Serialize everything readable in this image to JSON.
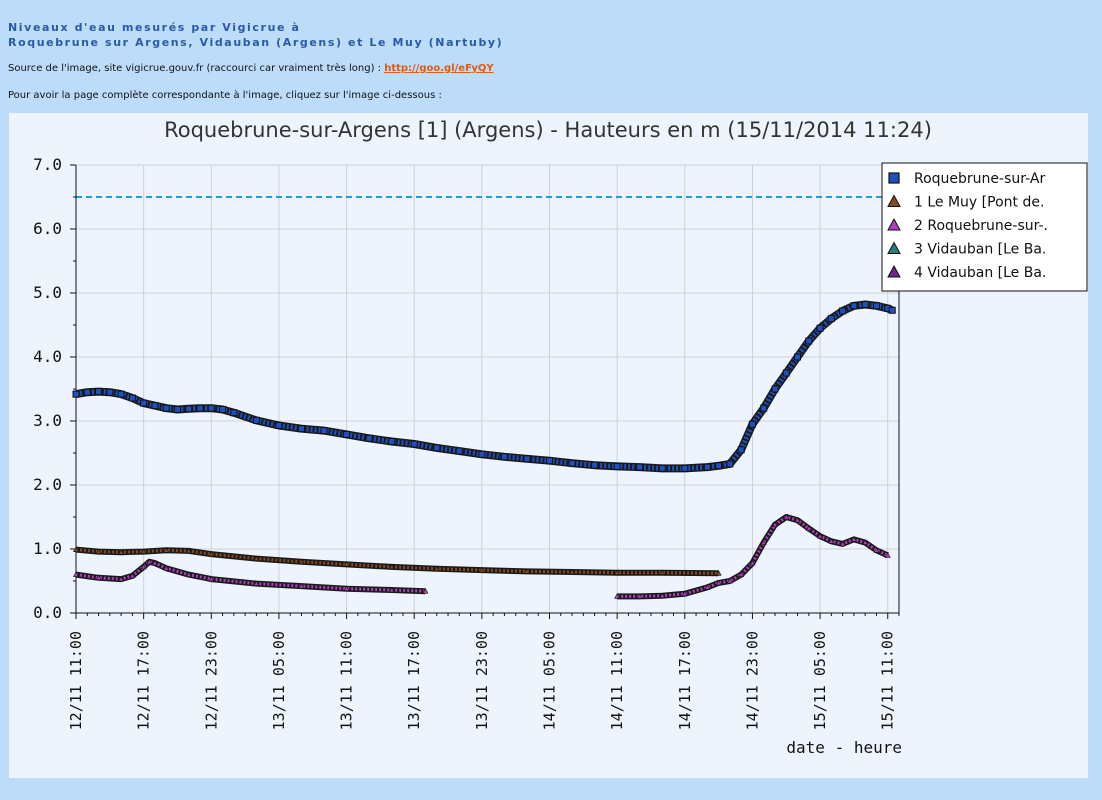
{
  "header": {
    "title_line1": "Niveaux d'eau mesurés par Vigicrue à",
    "title_line2": "Roquebrune sur Argens, Vidauban (Argens) et Le Muy (Nartuby)",
    "source_text": "Source de l'image, site vigicrue.gouv.fr (raccourci car vraiment très long) : ",
    "source_link": "http://goo.gl/eFyQY",
    "instruction": "Pour avoir la page complète correspondante à l'image, cliquez sur l'image ci-dessous :"
  },
  "colors": {
    "page_bg": "#bcdcfa",
    "title": "#2a5aa8",
    "link": "#e05a12",
    "threshold": "#1aa0e0",
    "series_main": "#2050c0",
    "series_muy": "#8a4a20",
    "series_roq": "#b040c0",
    "series_vid3": "#2a7a7a",
    "series_vid4": "#6a2a8a"
  },
  "chart_data": {
    "type": "line",
    "title": "Roquebrune-sur-Argens [1] (Argens) - Hauteurs en m (15/11/2014 11:24)",
    "xlabel": "date - heure",
    "ylabel": "",
    "ylim": [
      0,
      7
    ],
    "x_unit": "hours since first tick",
    "xlim": [
      0,
      73
    ],
    "yticks": [
      "0.0",
      "1.0",
      "2.0",
      "3.0",
      "4.0",
      "5.0",
      "6.0",
      "7.0"
    ],
    "xticks": [
      "12/11 11:00",
      "12/11 17:00",
      "12/11 23:00",
      "13/11 05:00",
      "13/11 11:00",
      "13/11 17:00",
      "13/11 23:00",
      "14/11 05:00",
      "14/11 11:00",
      "14/11 17:00",
      "14/11 23:00",
      "15/11 05:00",
      "15/11 11:00"
    ],
    "threshold": 6.5,
    "grid": true,
    "legend_position": "top-right",
    "legend": [
      "Roquebrune-sur-Ar",
      "1 Le Muy [Pont de.",
      "2 Roquebrune-sur-.",
      "3 Vidauban [Le Ba.",
      "4 Vidauban [Le Ba."
    ],
    "series": [
      {
        "name": "Roquebrune-sur-Ar",
        "marker": "square",
        "x": [
          0,
          1,
          2,
          3,
          4,
          5,
          6,
          7,
          8,
          9,
          10,
          11,
          12,
          13,
          14,
          16,
          18,
          20,
          22,
          24,
          26,
          28,
          30,
          32,
          34,
          36,
          38,
          40,
          42,
          44,
          46,
          48,
          50,
          52,
          54,
          56,
          57,
          58,
          59,
          60,
          61,
          62,
          63,
          64,
          65,
          66,
          67,
          68,
          69,
          70,
          71,
          72,
          72.4
        ],
        "y": [
          3.42,
          3.45,
          3.46,
          3.45,
          3.42,
          3.36,
          3.28,
          3.24,
          3.2,
          3.18,
          3.19,
          3.2,
          3.2,
          3.18,
          3.13,
          3.01,
          2.93,
          2.88,
          2.85,
          2.79,
          2.73,
          2.68,
          2.64,
          2.58,
          2.53,
          2.48,
          2.44,
          2.41,
          2.38,
          2.34,
          2.31,
          2.29,
          2.28,
          2.26,
          2.26,
          2.28,
          2.3,
          2.33,
          2.55,
          2.95,
          3.2,
          3.5,
          3.75,
          4.0,
          4.25,
          4.45,
          4.6,
          4.72,
          4.8,
          4.82,
          4.8,
          4.76,
          4.73
        ]
      },
      {
        "name": "1 Le Muy [Pont de.",
        "marker": "triangle",
        "x": [
          0,
          2,
          4,
          6,
          8,
          10,
          12,
          16,
          20,
          24,
          28,
          32,
          36,
          40,
          44,
          48,
          52,
          57
        ],
        "y": [
          0.99,
          0.96,
          0.95,
          0.96,
          0.98,
          0.97,
          0.92,
          0.85,
          0.8,
          0.76,
          0.72,
          0.69,
          0.67,
          0.65,
          0.64,
          0.63,
          0.63,
          0.62
        ]
      },
      {
        "name": "2 Roquebrune-sur-.",
        "marker": "triangle",
        "x": [
          0,
          2,
          4,
          5,
          6,
          6.5,
          7,
          8,
          10,
          12,
          16,
          20,
          24,
          28,
          31,
          48,
          50,
          52,
          54,
          56,
          57,
          58,
          59,
          60,
          61,
          62,
          63,
          64,
          65,
          66,
          67,
          68,
          69,
          70,
          71,
          72
        ],
        "y": [
          0.6,
          0.55,
          0.53,
          0.58,
          0.72,
          0.8,
          0.78,
          0.7,
          0.6,
          0.53,
          0.46,
          0.42,
          0.38,
          0.36,
          0.34,
          0.26,
          0.26,
          0.27,
          0.3,
          0.4,
          0.47,
          0.5,
          0.6,
          0.78,
          1.1,
          1.38,
          1.5,
          1.45,
          1.32,
          1.2,
          1.12,
          1.08,
          1.15,
          1.1,
          0.98,
          0.9
        ]
      },
      {
        "name": "3 Vidauban [Le Ba.",
        "marker": "triangle",
        "x": [],
        "y": []
      },
      {
        "name": "4 Vidauban [Le Ba.",
        "marker": "triangle",
        "x": [],
        "y": []
      }
    ]
  }
}
